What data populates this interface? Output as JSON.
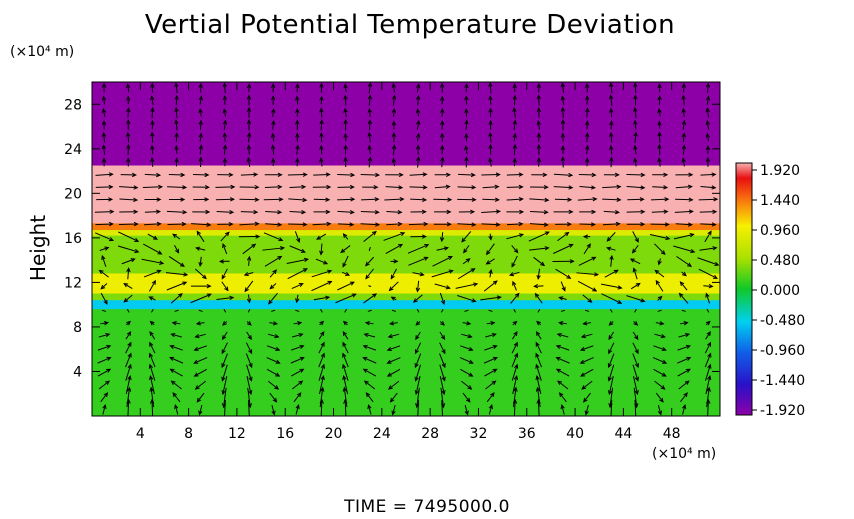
{
  "chart_data": {
    "type": "heatmap",
    "title": "Vertial Potential Temperature Deviation",
    "ylabel": "Height",
    "y_unit": "(×10⁴ m)",
    "x_unit": "(×10⁴ m)",
    "footer": "TIME = 7495000.0",
    "xlim": [
      0,
      52
    ],
    "ylim": [
      0,
      30
    ],
    "x_ticks": [
      "4",
      "8",
      "12",
      "16",
      "20",
      "24",
      "28",
      "32",
      "36",
      "40",
      "44",
      "48"
    ],
    "y_ticks": [
      "4",
      "8",
      "12",
      "16",
      "20",
      "24",
      "28"
    ],
    "colorbar": {
      "ticks": [
        "1.920",
        "1.440",
        "0.960",
        "0.480",
        "0.000",
        "-0.480",
        "-0.960",
        "-1.440",
        "-1.920"
      ],
      "range": [
        -1.92,
        1.92
      ]
    },
    "field_bands": [
      {
        "y0": 22.5,
        "y1": 30,
        "value": -1.92
      },
      {
        "y0": 17.3,
        "y1": 22.5,
        "value": 1.92
      },
      {
        "y0": 16.7,
        "y1": 17.3,
        "value": 1.35
      },
      {
        "y0": 16.2,
        "y1": 16.7,
        "value": 0.8
      },
      {
        "y0": 12.8,
        "y1": 16.2,
        "value": 0.35
      },
      {
        "y0": 11.0,
        "y1": 12.8,
        "value": 0.9
      },
      {
        "y0": 10.4,
        "y1": 11.0,
        "value": 0.35
      },
      {
        "y0": 9.6,
        "y1": 10.4,
        "value": -0.5
      },
      {
        "y0": 0,
        "y1": 9.6,
        "value": 0.12
      }
    ],
    "vector_field": "wind vectors overlaid on grid (upper region near-uniform, lower region convective cells)"
  }
}
